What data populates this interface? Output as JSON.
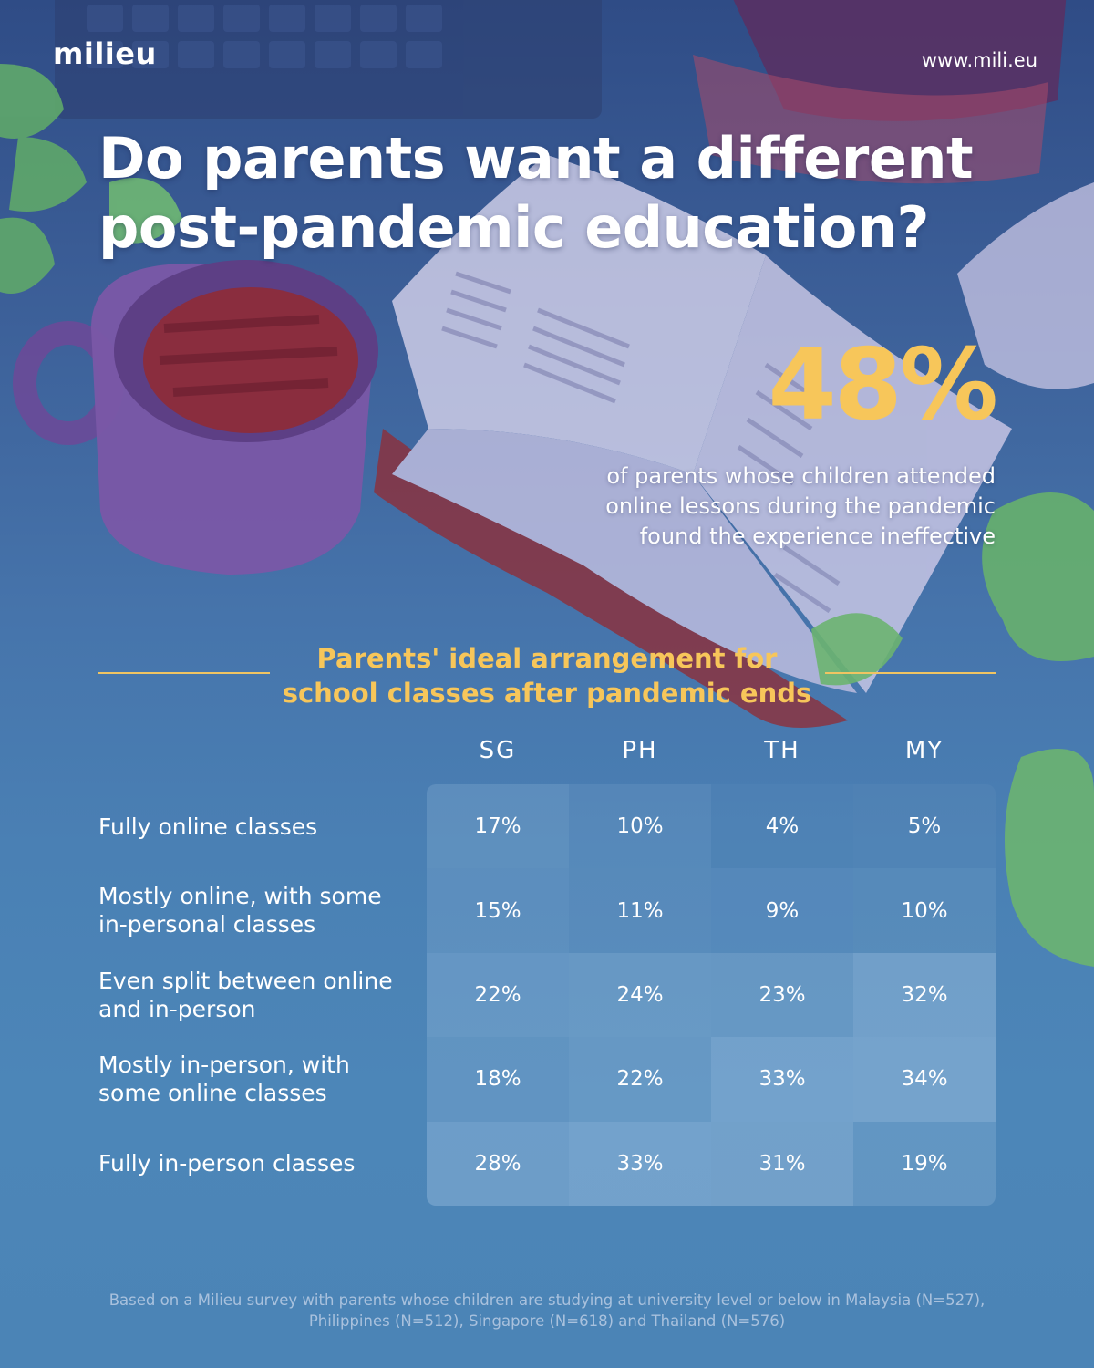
{
  "brand": {
    "logo": "milieu",
    "website": "www.mili.eu"
  },
  "headline": {
    "title": "Do parents want a different post-pandemic education?"
  },
  "highlight": {
    "stat": "48%",
    "description": "of parents whose children attended online lessons during the pandemic found the experience ineffective"
  },
  "section": {
    "title": "Parents' ideal arrangement for school classes after pandemic ends"
  },
  "chart_data": {
    "type": "table",
    "title": "Parents' ideal arrangement for school classes after pandemic ends",
    "columns": [
      "SG",
      "PH",
      "TH",
      "MY"
    ],
    "rows": [
      {
        "label": "Fully online classes",
        "values": [
          "17%",
          "10%",
          "4%",
          "5%"
        ]
      },
      {
        "label": "Mostly online, with some in-personal classes",
        "values": [
          "15%",
          "11%",
          "9%",
          "10%"
        ]
      },
      {
        "label": "Even split between online and in-person",
        "values": [
          "22%",
          "24%",
          "23%",
          "32%"
        ]
      },
      {
        "label": "Mostly in-person, with some online classes",
        "values": [
          "18%",
          "22%",
          "33%",
          "34%"
        ]
      },
      {
        "label": "Fully in-person classes",
        "values": [
          "28%",
          "33%",
          "31%",
          "19%"
        ]
      }
    ]
  },
  "footnote": "Based on a Milieu survey with parents whose children are studying at university level or below in Malaysia (N=527), Philippines (N=512), Singapore (N=618) and Thailand (N=576)"
}
